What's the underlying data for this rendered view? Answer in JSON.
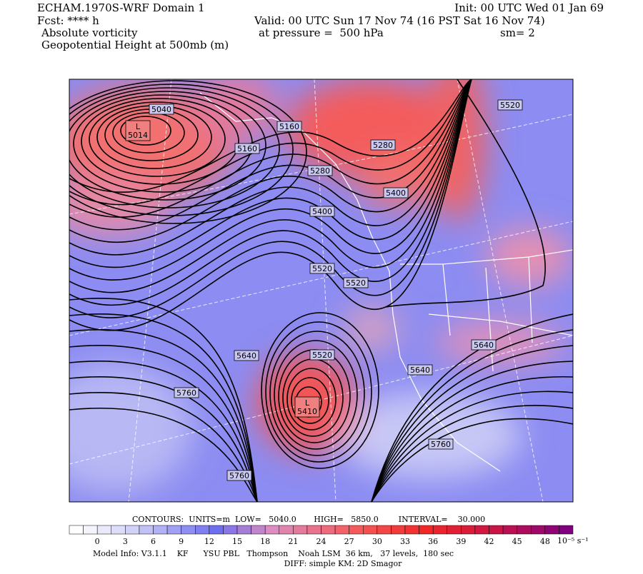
{
  "header": {
    "model": "ECHAM.1970S-WRF Domain 1",
    "forecast": "Fcst: **** h",
    "field_1": "Absolute vorticity",
    "field_2": "Geopotential Height at 500mb (m)",
    "init": "Init: 00 UTC Wed 01 Jan 69",
    "valid": "Valid: 00 UTC Sun 17 Nov 74 (16 PST Sat 16 Nov 74)",
    "pressure": "at pressure =  500 hPa",
    "smoothing": "sm= 2"
  },
  "map": {
    "contour_labels": [
      5040,
      5160,
      5160,
      5280,
      5280,
      5400,
      5400,
      5520,
      5520,
      5520,
      5640,
      5520,
      5640,
      5640,
      5760,
      5760,
      5760
    ],
    "lows": [
      {
        "symbol": "L",
        "value": 5014
      },
      {
        "symbol": "L",
        "value": 5410
      }
    ]
  },
  "footer": {
    "contours": "CONTOURS:  UNITS=m  LOW=   5040.0       HIGH=   5850.0        INTERVAL=    30.000",
    "colorbar_ticks": [
      0,
      3,
      6,
      9,
      12,
      15,
      18,
      21,
      24,
      27,
      30,
      33,
      36,
      39,
      42,
      45,
      48
    ],
    "colorbar_units": "10⁻⁵ s⁻¹",
    "model_info": "Model Info: V3.1.1    KF      YSU PBL   Thompson    Noah LSM  36 km,   37 levels,  180 sec",
    "diff": "DIFF: simple KM: 2D Smagor"
  }
}
